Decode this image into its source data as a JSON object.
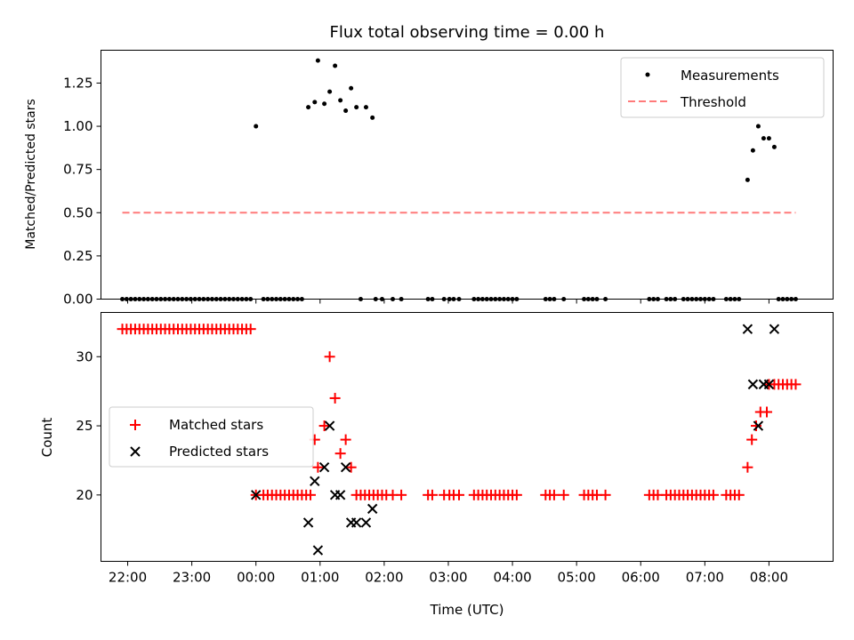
{
  "chart_data": [
    {
      "type": "scatter",
      "title": "Flux total observing time = 0.00 h",
      "xlabel": "",
      "ylabel": "Matched/Predicted stars",
      "xlim": [
        "21:35",
        "09:00"
      ],
      "ylim": [
        0,
        1.44
      ],
      "yticks": [
        "0.00",
        "0.25",
        "0.50",
        "0.75",
        "1.00",
        "1.25"
      ],
      "legend_position": "top-right",
      "series": [
        {
          "name": "Measurements",
          "marker": "dot",
          "color": "#000000",
          "points": [
            [
              "21:55",
              0
            ],
            [
              "21:59",
              0
            ],
            [
              "22:03",
              0
            ],
            [
              "22:07",
              0
            ],
            [
              "22:11",
              0
            ],
            [
              "22:15",
              0
            ],
            [
              "22:19",
              0
            ],
            [
              "22:23",
              0
            ],
            [
              "22:27",
              0
            ],
            [
              "22:31",
              0
            ],
            [
              "22:35",
              0
            ],
            [
              "22:39",
              0
            ],
            [
              "22:43",
              0
            ],
            [
              "22:47",
              0
            ],
            [
              "22:51",
              0
            ],
            [
              "22:55",
              0
            ],
            [
              "22:59",
              0
            ],
            [
              "23:03",
              0
            ],
            [
              "23:07",
              0
            ],
            [
              "23:11",
              0
            ],
            [
              "23:15",
              0
            ],
            [
              "23:19",
              0
            ],
            [
              "23:23",
              0
            ],
            [
              "23:27",
              0
            ],
            [
              "23:31",
              0
            ],
            [
              "23:35",
              0
            ],
            [
              "23:39",
              0
            ],
            [
              "23:43",
              0
            ],
            [
              "23:47",
              0
            ],
            [
              "23:51",
              0
            ],
            [
              "23:55",
              0
            ],
            [
              "00:00",
              1.0
            ],
            [
              "00:07",
              0
            ],
            [
              "00:11",
              0
            ],
            [
              "00:15",
              0
            ],
            [
              "00:19",
              0
            ],
            [
              "00:23",
              0
            ],
            [
              "00:27",
              0
            ],
            [
              "00:31",
              0
            ],
            [
              "00:35",
              0
            ],
            [
              "00:39",
              0
            ],
            [
              "00:43",
              0
            ],
            [
              "00:49",
              1.11
            ],
            [
              "00:55",
              1.14
            ],
            [
              "00:58",
              1.38
            ],
            [
              "01:04",
              1.13
            ],
            [
              "01:09",
              1.2
            ],
            [
              "01:14",
              1.35
            ],
            [
              "01:19",
              1.15
            ],
            [
              "01:24",
              1.09
            ],
            [
              "01:29",
              1.22
            ],
            [
              "01:34",
              1.11
            ],
            [
              "01:43",
              1.11
            ],
            [
              "01:49",
              1.05
            ],
            [
              "01:38",
              0
            ],
            [
              "01:52",
              0
            ],
            [
              "01:58",
              0
            ],
            [
              "02:08",
              0
            ],
            [
              "02:16",
              0
            ],
            [
              "02:41",
              0
            ],
            [
              "02:45",
              0
            ],
            [
              "02:56",
              0
            ],
            [
              "03:01",
              0
            ],
            [
              "03:05",
              0
            ],
            [
              "03:10",
              0
            ],
            [
              "03:24",
              0
            ],
            [
              "03:28",
              0
            ],
            [
              "03:32",
              0
            ],
            [
              "03:36",
              0
            ],
            [
              "03:40",
              0
            ],
            [
              "03:44",
              0
            ],
            [
              "03:48",
              0
            ],
            [
              "03:52",
              0
            ],
            [
              "03:56",
              0
            ],
            [
              "04:00",
              0
            ],
            [
              "04:04",
              0
            ],
            [
              "04:31",
              0
            ],
            [
              "04:35",
              0
            ],
            [
              "04:39",
              0
            ],
            [
              "04:48",
              0
            ],
            [
              "05:07",
              0
            ],
            [
              "05:11",
              0
            ],
            [
              "05:15",
              0
            ],
            [
              "05:19",
              0
            ],
            [
              "05:27",
              0
            ],
            [
              "06:08",
              0
            ],
            [
              "06:12",
              0
            ],
            [
              "06:16",
              0
            ],
            [
              "06:24",
              0
            ],
            [
              "06:28",
              0
            ],
            [
              "06:32",
              0
            ],
            [
              "06:40",
              0
            ],
            [
              "06:44",
              0
            ],
            [
              "06:48",
              0
            ],
            [
              "06:52",
              0
            ],
            [
              "06:56",
              0
            ],
            [
              "07:00",
              0
            ],
            [
              "07:04",
              0
            ],
            [
              "07:08",
              0
            ],
            [
              "07:20",
              0
            ],
            [
              "07:24",
              0
            ],
            [
              "07:28",
              0
            ],
            [
              "07:32",
              0
            ],
            [
              "07:40",
              0.69
            ],
            [
              "07:45",
              0.86
            ],
            [
              "07:50",
              1.0
            ],
            [
              "07:55",
              0.93
            ],
            [
              "08:00",
              0.93
            ],
            [
              "08:05",
              0.88
            ],
            [
              "08:09",
              0
            ],
            [
              "08:13",
              0
            ],
            [
              "08:17",
              0
            ],
            [
              "08:21",
              0
            ],
            [
              "08:25",
              0
            ]
          ]
        },
        {
          "name": "Threshold",
          "marker": "dashed-line",
          "color": "#ff7a7a",
          "points": [
            [
              "21:55",
              0.5
            ],
            [
              "08:25",
              0.5
            ]
          ]
        }
      ]
    },
    {
      "type": "scatter",
      "title": "",
      "xlabel": "Time (UTC)",
      "ylabel": "Count",
      "xlim": [
        "21:35",
        "09:00"
      ],
      "ylim": [
        15.2,
        33.2
      ],
      "yticks": [
        "20",
        "25",
        "30"
      ],
      "xticks": [
        "22:00",
        "23:00",
        "00:00",
        "01:00",
        "02:00",
        "03:00",
        "04:00",
        "05:00",
        "06:00",
        "07:00",
        "08:00"
      ],
      "legend_position": "center-left",
      "series": [
        {
          "name": "Matched stars",
          "marker": "plus",
          "color": "#ff0000",
          "points": [
            [
              "21:55",
              32
            ],
            [
              "21:59",
              32
            ],
            [
              "22:03",
              32
            ],
            [
              "22:07",
              32
            ],
            [
              "22:11",
              32
            ],
            [
              "22:15",
              32
            ],
            [
              "22:19",
              32
            ],
            [
              "22:23",
              32
            ],
            [
              "22:27",
              32
            ],
            [
              "22:31",
              32
            ],
            [
              "22:35",
              32
            ],
            [
              "22:39",
              32
            ],
            [
              "22:43",
              32
            ],
            [
              "22:47",
              32
            ],
            [
              "22:51",
              32
            ],
            [
              "22:55",
              32
            ],
            [
              "22:59",
              32
            ],
            [
              "23:03",
              32
            ],
            [
              "23:07",
              32
            ],
            [
              "23:11",
              32
            ],
            [
              "23:15",
              32
            ],
            [
              "23:19",
              32
            ],
            [
              "23:23",
              32
            ],
            [
              "23:27",
              32
            ],
            [
              "23:31",
              32
            ],
            [
              "23:35",
              32
            ],
            [
              "23:39",
              32
            ],
            [
              "23:43",
              32
            ],
            [
              "23:47",
              32
            ],
            [
              "23:51",
              32
            ],
            [
              "23:55",
              32
            ],
            [
              "00:00",
              20
            ],
            [
              "00:07",
              20
            ],
            [
              "00:11",
              20
            ],
            [
              "00:15",
              20
            ],
            [
              "00:19",
              20
            ],
            [
              "00:23",
              20
            ],
            [
              "00:27",
              20
            ],
            [
              "00:31",
              20
            ],
            [
              "00:35",
              20
            ],
            [
              "00:39",
              20
            ],
            [
              "00:43",
              20
            ],
            [
              "00:47",
              20
            ],
            [
              "00:51",
              20
            ],
            [
              "00:55",
              24
            ],
            [
              "00:58",
              22
            ],
            [
              "01:04",
              25
            ],
            [
              "01:09",
              30
            ],
            [
              "01:14",
              27
            ],
            [
              "01:19",
              23
            ],
            [
              "01:24",
              24
            ],
            [
              "01:29",
              22
            ],
            [
              "01:34",
              20
            ],
            [
              "01:38",
              20
            ],
            [
              "01:42",
              20
            ],
            [
              "01:46",
              20
            ],
            [
              "01:50",
              20
            ],
            [
              "01:54",
              20
            ],
            [
              "01:58",
              20
            ],
            [
              "02:02",
              20
            ],
            [
              "02:08",
              20
            ],
            [
              "02:16",
              20
            ],
            [
              "02:41",
              20
            ],
            [
              "02:45",
              20
            ],
            [
              "02:56",
              20
            ],
            [
              "03:01",
              20
            ],
            [
              "03:05",
              20
            ],
            [
              "03:10",
              20
            ],
            [
              "03:24",
              20
            ],
            [
              "03:28",
              20
            ],
            [
              "03:32",
              20
            ],
            [
              "03:36",
              20
            ],
            [
              "03:40",
              20
            ],
            [
              "03:44",
              20
            ],
            [
              "03:48",
              20
            ],
            [
              "03:52",
              20
            ],
            [
              "03:56",
              20
            ],
            [
              "04:00",
              20
            ],
            [
              "04:04",
              20
            ],
            [
              "04:31",
              20
            ],
            [
              "04:35",
              20
            ],
            [
              "04:39",
              20
            ],
            [
              "04:48",
              20
            ],
            [
              "05:07",
              20
            ],
            [
              "05:11",
              20
            ],
            [
              "05:15",
              20
            ],
            [
              "05:19",
              20
            ],
            [
              "05:27",
              20
            ],
            [
              "06:08",
              20
            ],
            [
              "06:12",
              20
            ],
            [
              "06:16",
              20
            ],
            [
              "06:24",
              20
            ],
            [
              "06:28",
              20
            ],
            [
              "06:32",
              20
            ],
            [
              "06:36",
              20
            ],
            [
              "06:40",
              20
            ],
            [
              "06:44",
              20
            ],
            [
              "06:48",
              20
            ],
            [
              "06:52",
              20
            ],
            [
              "06:56",
              20
            ],
            [
              "07:00",
              20
            ],
            [
              "07:04",
              20
            ],
            [
              "07:08",
              20
            ],
            [
              "07:20",
              20
            ],
            [
              "07:24",
              20
            ],
            [
              "07:28",
              20
            ],
            [
              "07:32",
              20
            ],
            [
              "07:40",
              22
            ],
            [
              "07:44",
              24
            ],
            [
              "07:48",
              25
            ],
            [
              "07:52",
              26
            ],
            [
              "07:58",
              26
            ],
            [
              "08:00",
              28
            ],
            [
              "08:05",
              28
            ],
            [
              "08:09",
              28
            ],
            [
              "08:13",
              28
            ],
            [
              "08:17",
              28
            ],
            [
              "08:21",
              28
            ],
            [
              "08:25",
              28
            ]
          ]
        },
        {
          "name": "Predicted stars",
          "marker": "x",
          "color": "#000000",
          "points": [
            [
              "00:00",
              20
            ],
            [
              "00:49",
              18
            ],
            [
              "00:55",
              21
            ],
            [
              "00:58",
              16
            ],
            [
              "01:04",
              22
            ],
            [
              "01:09",
              25
            ],
            [
              "01:14",
              20
            ],
            [
              "01:19",
              20
            ],
            [
              "01:24",
              22
            ],
            [
              "01:29",
              18
            ],
            [
              "01:34",
              18
            ],
            [
              "01:43",
              18
            ],
            [
              "01:49",
              19
            ],
            [
              "07:40",
              32
            ],
            [
              "07:45",
              28
            ],
            [
              "07:50",
              25
            ],
            [
              "07:55",
              28
            ],
            [
              "08:00",
              28
            ],
            [
              "08:05",
              32
            ]
          ]
        }
      ]
    }
  ]
}
